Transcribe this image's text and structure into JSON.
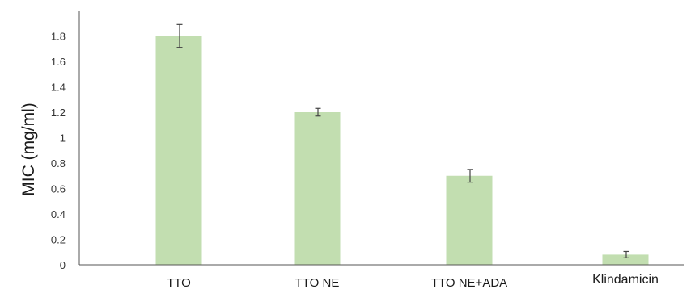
{
  "colors": {
    "bar": "#c2deb0",
    "axis": "#555555",
    "errorbar": "#444444"
  },
  "chart_data": {
    "type": "bar",
    "categories": [
      "TTO",
      "TTO NE",
      "TTO NE+ADA",
      "Klindamicin"
    ],
    "values": [
      1.8,
      1.2,
      0.7,
      0.08
    ],
    "errors": [
      0.09,
      0.03,
      0.05,
      0.025
    ],
    "xlabel": "",
    "ylabel": "MIC (mg/ml)",
    "ylim": [
      0,
      2.0
    ],
    "yticks": [
      "0",
      "0.2",
      "0.4",
      "0.6",
      "0.8",
      "1",
      "1.2",
      "1.4",
      "1.6",
      "1.8"
    ],
    "grid": false
  }
}
